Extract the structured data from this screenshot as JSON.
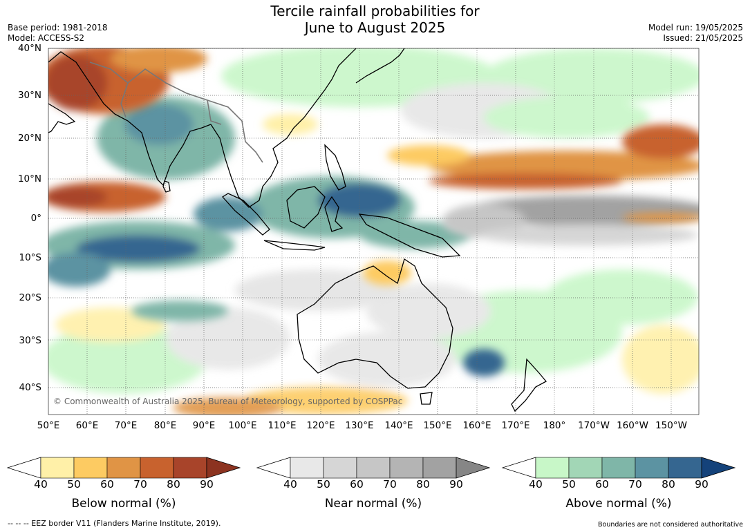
{
  "title_line1": "Tercile rainfall probabilities for",
  "title_line2": "June to August 2025",
  "base_period": "Base period: 1981-2018",
  "model": "Model: ACCESS-S2",
  "model_run": "Model run: 19/05/2025",
  "issued": "Issued: 21/05/2025",
  "credit": "© Commonwealth of Australia 2025, Bureau of Meteorology, supported by COSPPac",
  "eez_note": "--  --  -- EEZ border V11 (Flanders Marine Institute, 2019).",
  "disclaimer": "Boundaries are not considered authoritative",
  "lat_labels": [
    "40°N",
    "30°N",
    "20°N",
    "10°N",
    "0°",
    "10°S",
    "20°S",
    "30°S",
    "40°S"
  ],
  "lon_labels": [
    "50°E",
    "60°E",
    "70°E",
    "80°E",
    "90°E",
    "100°E",
    "110°E",
    "120°E",
    "130°E",
    "140°E",
    "150°E",
    "160°E",
    "170°E",
    "180°",
    "170°W",
    "160°W",
    "150°W"
  ],
  "colorbars": [
    {
      "title": "Below normal (%)",
      "ticks": [
        "40",
        "50",
        "60",
        "70",
        "80",
        "90"
      ],
      "colors": [
        "#fff0a8",
        "#fdcb62",
        "#e09445",
        "#c8622e",
        "#a8442a"
      ],
      "extend_color": "#8c3320"
    },
    {
      "title": "Near normal (%)",
      "ticks": [
        "40",
        "50",
        "60",
        "70",
        "80",
        "90"
      ],
      "colors": [
        "#e8e8e8",
        "#d6d6d6",
        "#c6c6c6",
        "#b4b4b4",
        "#a2a2a2"
      ],
      "extend_color": "#868686"
    },
    {
      "title": "Above normal (%)",
      "ticks": [
        "40",
        "50",
        "60",
        "70",
        "80",
        "90"
      ],
      "colors": [
        "#c8f7c8",
        "#a2d6b6",
        "#7fb6a8",
        "#5c93a2",
        "#356690"
      ],
      "extend_color": "#14427a"
    }
  ]
}
